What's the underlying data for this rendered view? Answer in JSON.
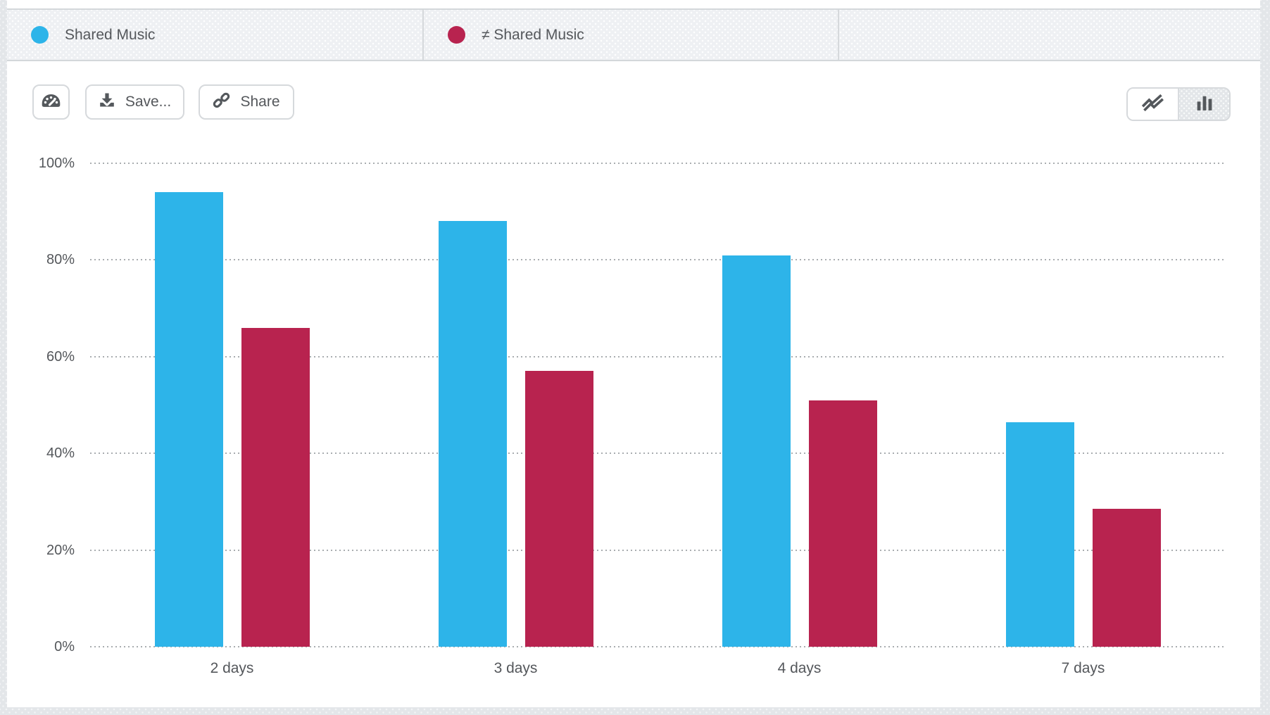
{
  "legend": {
    "items": [
      {
        "label": "Shared Music",
        "color": "#2db4e9"
      },
      {
        "label": "≠ Shared Music",
        "color": "#b8234f"
      }
    ]
  },
  "toolbar": {
    "save_label": "Save...",
    "share_label": "Share",
    "icons": [
      "gauge-icon",
      "download-icon",
      "link-icon"
    ]
  },
  "view_toggle": {
    "options": [
      "line",
      "bar"
    ],
    "selected": "bar"
  },
  "chart_data": {
    "type": "bar",
    "categories": [
      "2 days",
      "3 days",
      "4 days",
      "7 days"
    ],
    "series": [
      {
        "name": "Shared Music",
        "color": "#2db4e9",
        "values": [
          94,
          88,
          81,
          46.5
        ]
      },
      {
        "name": "≠ Shared Music",
        "color": "#b8234f",
        "values": [
          66,
          57,
          51,
          28.5
        ]
      }
    ],
    "title": "",
    "xlabel": "",
    "ylabel": "",
    "ylim": [
      0,
      100
    ],
    "yticks": [
      "0%",
      "20%",
      "40%",
      "60%",
      "80%",
      "100%"
    ],
    "grid": "dotted-horizontal",
    "legend_position": "top"
  }
}
